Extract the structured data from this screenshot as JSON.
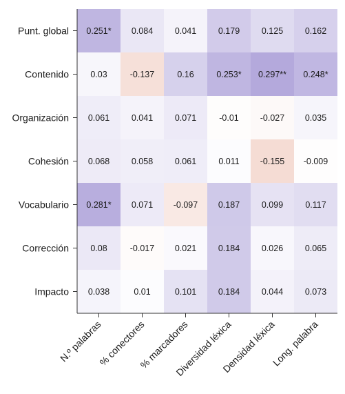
{
  "chart_data": {
    "type": "heatmap",
    "title": "",
    "xlabel": "",
    "ylabel": "",
    "rows": [
      "Punt. global",
      "Contenido",
      "Organización",
      "Cohesión",
      "Vocabulario",
      "Corrección",
      "Impacto"
    ],
    "columns": [
      "N.º palabras",
      "% conectores",
      "% marcadores",
      "Diversidad léxica",
      "Densidad léxica",
      "Long. palabra"
    ],
    "values": [
      [
        0.251,
        0.084,
        0.041,
        0.179,
        0.125,
        0.162
      ],
      [
        0.03,
        -0.137,
        0.16,
        0.253,
        0.297,
        0.248
      ],
      [
        0.061,
        0.041,
        0.071,
        -0.01,
        -0.027,
        0.035
      ],
      [
        0.068,
        0.058,
        0.061,
        0.011,
        -0.155,
        -0.009
      ],
      [
        0.281,
        0.071,
        -0.097,
        0.187,
        0.099,
        0.117
      ],
      [
        0.08,
        -0.017,
        0.021,
        0.184,
        0.026,
        0.065
      ],
      [
        0.038,
        0.01,
        0.101,
        0.184,
        0.044,
        0.073
      ]
    ],
    "labels": [
      [
        "0.251*",
        "0.084",
        "0.041",
        "0.179",
        "0.125",
        "0.162"
      ],
      [
        "0.03",
        "-0.137",
        "0.16",
        "0.253*",
        "0.297**",
        "0.248*"
      ],
      [
        "0.061",
        "0.041",
        "0.071",
        "-0.01",
        "-0.027",
        "0.035"
      ],
      [
        "0.068",
        "0.058",
        "0.061",
        "0.011",
        "-0.155",
        "-0.009"
      ],
      [
        "0.281*",
        "0.071",
        "-0.097",
        "0.187",
        "0.099",
        "0.117"
      ],
      [
        "0.08",
        "-0.017",
        "0.021",
        "0.184",
        "0.026",
        "0.065"
      ],
      [
        "0.038",
        "0.01",
        "0.101",
        "0.184",
        "0.044",
        "0.073"
      ]
    ],
    "colors": {
      "positive": "#9a8cd0",
      "negative": "#e6a592",
      "neutral": "#ffffff"
    },
    "legend": "none",
    "grid": false
  }
}
